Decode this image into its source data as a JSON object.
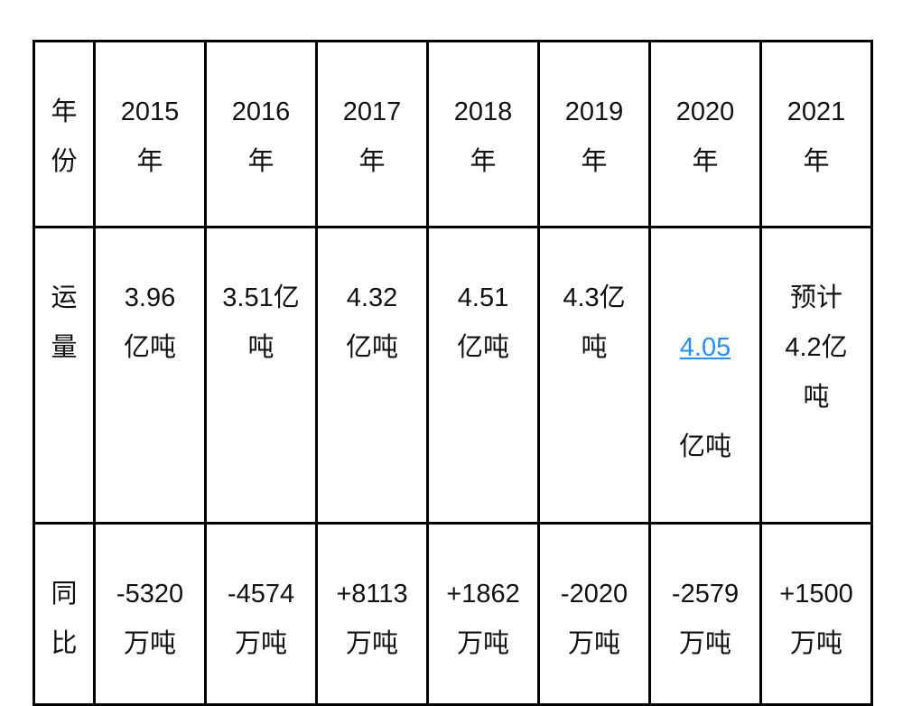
{
  "table": {
    "colors": {
      "link": "#1E90FF",
      "border": "#000000",
      "text": "#111111"
    },
    "rows": [
      {
        "header": "年\n份",
        "cells": [
          "2015\n年",
          "2016\n年",
          "2017\n年",
          "2018\n年",
          "2019\n年",
          "2020\n年",
          "2021\n年"
        ]
      },
      {
        "header": "运\n量",
        "cells": [
          "3.96\n亿吨",
          "3.51亿\n吨",
          "4.32\n亿吨",
          "4.51\n亿吨",
          "4.3亿\n吨",
          {
            "link": "4.05",
            "unit": "亿吨"
          },
          "预计\n4.2亿\n吨"
        ]
      },
      {
        "header": "同\n比",
        "cells": [
          "-5320\n万吨",
          "-4574\n万吨",
          "+8113\n万吨",
          "+1862\n万吨",
          "-2020\n万吨",
          "-2579\n万吨",
          "+1500\n万吨"
        ]
      }
    ]
  }
}
